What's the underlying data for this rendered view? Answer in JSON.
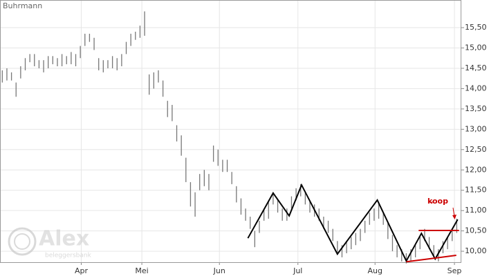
{
  "chart_data": {
    "type": "stock",
    "title": "Buhrmann",
    "watermark": {
      "logo": "Alex",
      "sub": "beleggersbank"
    },
    "xlim": [
      -0.5,
      100
    ],
    "xticks": [
      {
        "value": 17.2,
        "label": "Apr"
      },
      {
        "value": 30.4,
        "label": "Mei"
      },
      {
        "value": 47.3,
        "label": "Jun"
      },
      {
        "value": 64.4,
        "label": "Jul"
      },
      {
        "value": 81.2,
        "label": "Aug"
      },
      {
        "value": 98.5,
        "label": "Sep"
      }
    ],
    "ylim": [
      9.73,
      16.18
    ],
    "yticks": [
      {
        "value": 10,
        "label": "10,00"
      },
      {
        "value": 10.5,
        "label": "10,50"
      },
      {
        "value": 11,
        "label": "11,00"
      },
      {
        "value": 11.5,
        "label": "11,50"
      },
      {
        "value": 12,
        "label": "12,00"
      },
      {
        "value": 12.5,
        "label": "12,50"
      },
      {
        "value": 13,
        "label": "13,00"
      },
      {
        "value": 13.5,
        "label": "13,50"
      },
      {
        "value": 14,
        "label": "14,00"
      },
      {
        "value": 14.5,
        "label": "14,50"
      },
      {
        "value": 15,
        "label": "15,00"
      },
      {
        "value": 15.5,
        "label": "15,50"
      }
    ],
    "grid": true,
    "bar_color": "#777777",
    "high": [
      14.45,
      14.5,
      14.4,
      14.15,
      14.55,
      14.75,
      14.85,
      14.85,
      14.7,
      14.7,
      14.8,
      14.8,
      14.75,
      14.85,
      14.8,
      14.9,
      14.85,
      15.05,
      15.35,
      15.35,
      15.25,
      14.75,
      14.7,
      14.7,
      14.8,
      14.75,
      14.85,
      15.15,
      15.35,
      15.4,
      15.55,
      15.9,
      14.35,
      14.4,
      14.45,
      14.2,
      13.7,
      13.6,
      13.1,
      12.85,
      12.3,
      11.7,
      11.45,
      11.9,
      12.0,
      11.9,
      12.6,
      12.5,
      12.25,
      12.25,
      11.95,
      11.6,
      11.3,
      11.05,
      10.85,
      10.5,
      10.75,
      11.05,
      11.2,
      11.45,
      11.25,
      11.05,
      11.05,
      11.35,
      11.55,
      11.65,
      11.45,
      11.25,
      11.15,
      11.05,
      10.85,
      10.75,
      10.55,
      10.25,
      10.15,
      10.25,
      10.35,
      10.45,
      10.55,
      10.75,
      10.95,
      11.05,
      11.2,
      10.95,
      10.7,
      10.4,
      10.15,
      10.05,
      9.95,
      10.05,
      10.15,
      10.35,
      10.55,
      10.35,
      10.15,
      10.05,
      10.25,
      10.35,
      10.55,
      10.8
    ],
    "low": [
      14.15,
      14.2,
      14.2,
      13.8,
      14.25,
      14.45,
      14.65,
      14.55,
      14.5,
      14.4,
      14.5,
      14.6,
      14.55,
      14.55,
      14.6,
      14.6,
      14.55,
      14.75,
      15.05,
      15.15,
      14.95,
      14.45,
      14.4,
      14.5,
      14.5,
      14.45,
      14.55,
      14.85,
      15.05,
      15.2,
      15.25,
      15.3,
      13.85,
      14.0,
      14.15,
      13.8,
      13.3,
      13.2,
      12.7,
      12.35,
      11.7,
      11.1,
      10.85,
      11.5,
      11.6,
      11.5,
      12.2,
      12.1,
      11.95,
      11.95,
      11.65,
      11.2,
      10.9,
      10.75,
      10.55,
      10.1,
      10.45,
      10.75,
      10.8,
      11.15,
      10.95,
      10.75,
      10.75,
      11.05,
      11.25,
      11.35,
      11.15,
      10.95,
      10.85,
      10.75,
      10.55,
      10.45,
      10.25,
      9.95,
      9.85,
      9.95,
      10.05,
      10.15,
      10.25,
      10.45,
      10.65,
      10.75,
      10.8,
      10.65,
      10.3,
      10.0,
      9.85,
      9.75,
      9.7,
      9.75,
      9.85,
      10.05,
      10.25,
      10.05,
      9.85,
      9.75,
      9.95,
      10.05,
      10.25,
      10.45
    ],
    "lines": [
      {
        "color": "#000000",
        "x": [
          53.5,
          59,
          62.5,
          65.2,
          73,
          81.7,
          88,
          91.3,
          94.3,
          99.2
        ],
        "values": [
          10.32,
          11.43,
          10.87,
          11.63,
          9.93,
          11.26,
          9.76,
          10.44,
          9.81,
          10.78
        ]
      },
      {
        "color": "#cc0000",
        "x": [
          90.7,
          99.5
        ],
        "values": [
          10.51,
          10.51
        ]
      },
      {
        "color": "#cc0000",
        "x": [
          88,
          98.9
        ],
        "values": [
          9.74,
          9.9
        ]
      }
    ],
    "annotation": {
      "text": "koop",
      "color": "#cc0000"
    }
  }
}
